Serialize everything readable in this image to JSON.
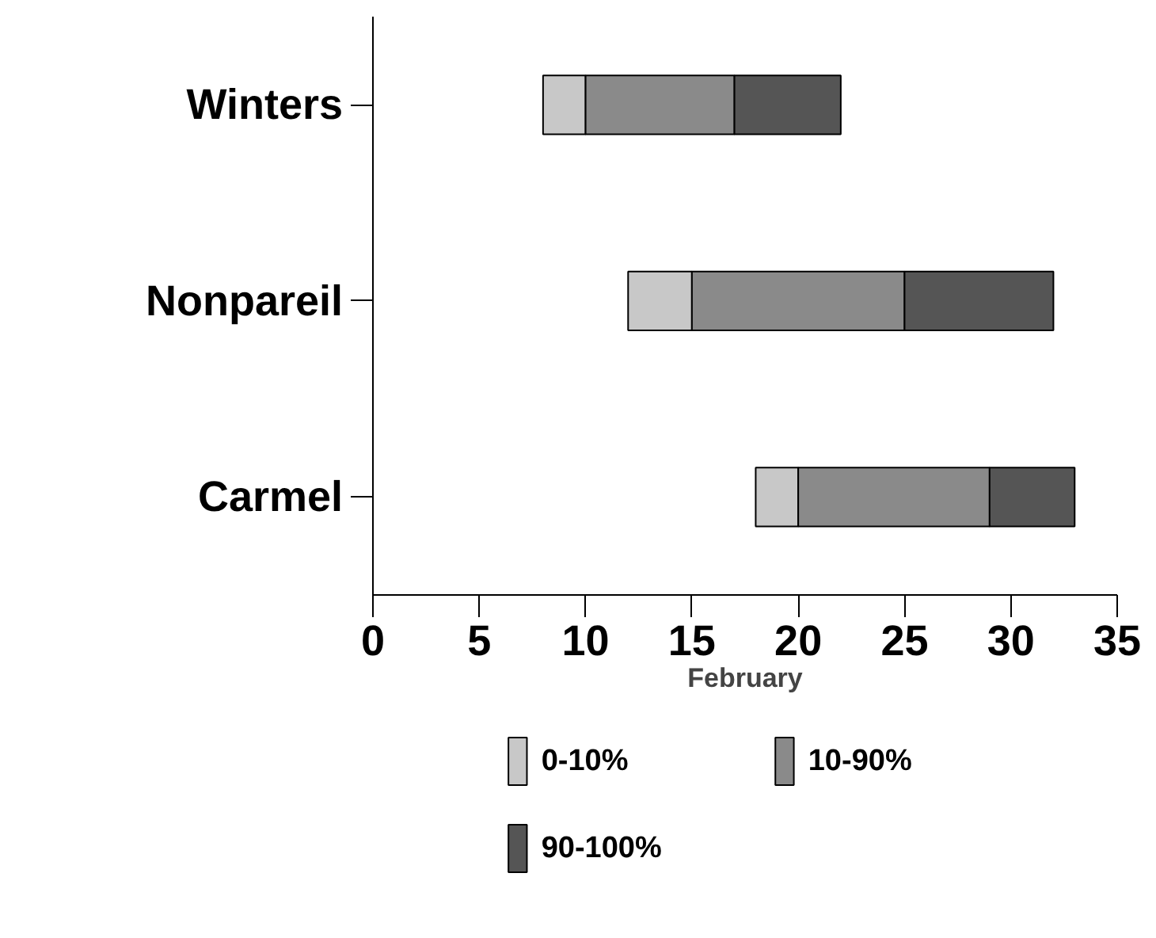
{
  "chart_data": {
    "type": "bar",
    "orientation": "horizontal",
    "categories": [
      "Winters",
      "Nonpareil",
      "Carmel"
    ],
    "series": [
      {
        "name": "0-10%",
        "color": "#c8c8c8",
        "base": [
          8,
          12,
          18
        ],
        "values": [
          2,
          3,
          2
        ]
      },
      {
        "name": "10-90%",
        "color": "#8a8a8a",
        "base": [
          10,
          15,
          20
        ],
        "values": [
          7,
          10,
          9
        ]
      },
      {
        "name": "90-100%",
        "color": "#555555",
        "base": [
          17,
          25,
          29
        ],
        "values": [
          5,
          7,
          4
        ]
      }
    ],
    "xlabel": "February",
    "xlim": [
      0,
      35
    ],
    "xticks": [
      0,
      5,
      10,
      15,
      20,
      25,
      30,
      35
    ],
    "grid": false,
    "legend": "bottom"
  }
}
